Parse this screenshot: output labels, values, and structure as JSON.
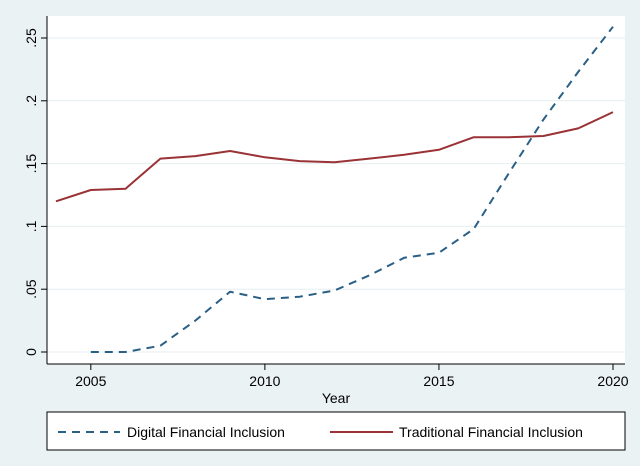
{
  "chart_data": {
    "type": "line",
    "title": "",
    "xlabel": "Year",
    "ylabel": "",
    "xlim": [
      2004,
      2020
    ],
    "ylim": [
      0,
      0.26
    ],
    "x_ticks": [
      {
        "value": 2005,
        "label": "2005"
      },
      {
        "value": 2010,
        "label": "2010"
      },
      {
        "value": 2015,
        "label": "2015"
      },
      {
        "value": 2020,
        "label": "2020"
      }
    ],
    "y_ticks": [
      {
        "value": 0,
        "label": "0"
      },
      {
        "value": 0.05,
        "label": ".05"
      },
      {
        "value": 0.1,
        "label": ".1"
      },
      {
        "value": 0.15,
        "label": ".15"
      },
      {
        "value": 0.2,
        "label": ".2"
      },
      {
        "value": 0.25,
        "label": ".25"
      }
    ],
    "grid": "horizontal",
    "legend_position": "bottom",
    "series": [
      {
        "name": "Digital Financial Inclusion",
        "color": "#2a5f86",
        "style": "dashed",
        "x": [
          2005,
          2006,
          2007,
          2008,
          2009,
          2010,
          2011,
          2012,
          2013,
          2014,
          2015,
          2016,
          2017,
          2018,
          2019,
          2020
        ],
        "values": [
          0.0,
          0.0,
          0.005,
          0.025,
          0.048,
          0.042,
          0.044,
          0.049,
          0.061,
          0.075,
          0.079,
          0.098,
          0.142,
          0.185,
          0.223,
          0.259
        ]
      },
      {
        "name": "Traditional Financial Inclusion",
        "color": "#9a3236",
        "style": "solid",
        "x": [
          2004,
          2005,
          2006,
          2007,
          2008,
          2009,
          2010,
          2011,
          2012,
          2013,
          2014,
          2015,
          2016,
          2017,
          2018,
          2019,
          2020
        ],
        "values": [
          0.12,
          0.129,
          0.13,
          0.154,
          0.156,
          0.16,
          0.155,
          0.152,
          0.151,
          0.154,
          0.157,
          0.161,
          0.171,
          0.171,
          0.172,
          0.178,
          0.191
        ]
      }
    ]
  }
}
